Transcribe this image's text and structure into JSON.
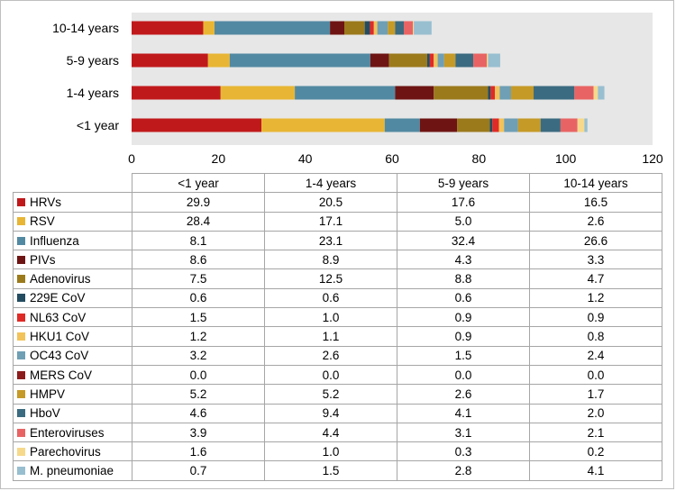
{
  "chart_data": {
    "type": "bar",
    "orientation": "horizontal",
    "stacked": true,
    "categories": [
      "<1 year",
      "1-4 years",
      "5-9 years",
      "10-14 years"
    ],
    "xlim": [
      0,
      120
    ],
    "xticks": [
      "0",
      "20",
      "40",
      "60",
      "80",
      "100",
      "120"
    ],
    "grid": false,
    "legend": "data table below chart",
    "series": [
      {
        "name": "HRVs",
        "color": "#c0191c",
        "values": [
          29.9,
          20.5,
          17.6,
          16.5
        ],
        "labels": [
          "29.9",
          "20.5",
          "17.6",
          "16.5"
        ]
      },
      {
        "name": "RSV",
        "color": "#e8b634",
        "values": [
          28.4,
          17.1,
          5.0,
          2.6
        ],
        "labels": [
          "28.4",
          "17.1",
          "5.0",
          "2.6"
        ]
      },
      {
        "name": "Influenza",
        "color": "#5289a2",
        "values": [
          8.1,
          23.1,
          32.4,
          26.6
        ],
        "labels": [
          "8.1",
          "23.1",
          "32.4",
          "26.6"
        ]
      },
      {
        "name": "PIVs",
        "color": "#6e1413",
        "values": [
          8.6,
          8.9,
          4.3,
          3.3
        ],
        "labels": [
          "8.6",
          "8.9",
          "4.3",
          "3.3"
        ]
      },
      {
        "name": "Adenovirus",
        "color": "#9b7a1c",
        "values": [
          7.5,
          12.5,
          8.8,
          4.7
        ],
        "labels": [
          "7.5",
          "12.5",
          "8.8",
          "4.7"
        ]
      },
      {
        "name": "229E CoV",
        "color": "#244c61",
        "values": [
          0.6,
          0.6,
          0.6,
          1.2
        ],
        "labels": [
          "0.6",
          "0.6",
          "0.6",
          "1.2"
        ]
      },
      {
        "name": "NL63 CoV",
        "color": "#df2b27",
        "values": [
          1.5,
          1.0,
          0.9,
          0.9
        ],
        "labels": [
          "1.5",
          "1.0",
          "0.9",
          "0.9"
        ]
      },
      {
        "name": "HKU1 CoV",
        "color": "#f2c35a",
        "values": [
          1.2,
          1.1,
          0.9,
          0.8
        ],
        "labels": [
          "1.2",
          "1.1",
          "0.9",
          "0.8"
        ]
      },
      {
        "name": "OC43 CoV",
        "color": "#6e9fb5",
        "values": [
          3.2,
          2.6,
          1.5,
          2.4
        ],
        "labels": [
          "3.2",
          "2.6",
          "1.5",
          "2.4"
        ]
      },
      {
        "name": "MERS CoV",
        "color": "#8c1c1c",
        "values": [
          0.0,
          0.0,
          0.0,
          0.0
        ],
        "labels": [
          "0.0",
          "0.0",
          "0.0",
          "0.0"
        ]
      },
      {
        "name": "HMPV",
        "color": "#c59a27",
        "values": [
          5.2,
          5.2,
          2.6,
          1.7
        ],
        "labels": [
          "5.2",
          "5.2",
          "2.6",
          "1.7"
        ]
      },
      {
        "name": "HboV",
        "color": "#3b6b80",
        "values": [
          4.6,
          9.4,
          4.1,
          2.0
        ],
        "labels": [
          "4.6",
          "9.4",
          "4.1",
          "2.0"
        ]
      },
      {
        "name": "Enteroviruses",
        "color": "#e86464",
        "values": [
          3.9,
          4.4,
          3.1,
          2.1
        ],
        "labels": [
          "3.9",
          "4.4",
          "3.1",
          "2.1"
        ]
      },
      {
        "name": "Parechovirus",
        "color": "#f7d98b",
        "values": [
          1.6,
          1.0,
          0.3,
          0.2
        ],
        "labels": [
          "1.6",
          "1.0",
          "0.3",
          "0.2"
        ]
      },
      {
        "name": "M. pneumoniae",
        "color": "#98bfd0",
        "values": [
          0.7,
          1.5,
          2.8,
          4.1
        ],
        "labels": [
          "0.7",
          "1.5",
          "2.8",
          "4.1"
        ]
      }
    ]
  }
}
